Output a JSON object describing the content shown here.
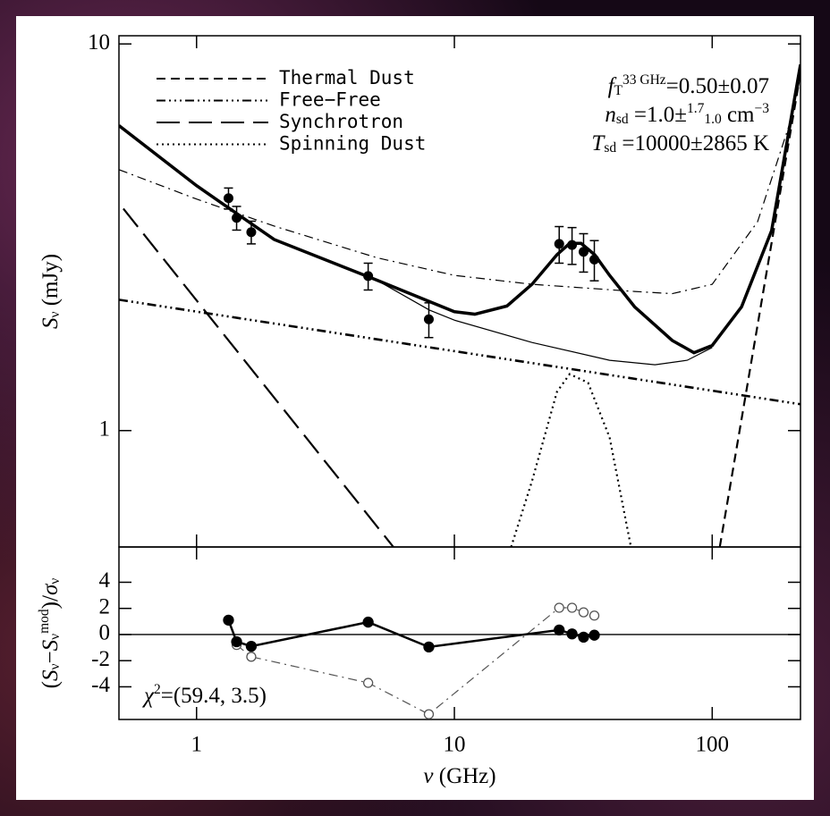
{
  "chart_data": [
    {
      "type": "line",
      "xscale": "log",
      "yscale": "log",
      "xlim": [
        0.5,
        220
      ],
      "ylim": [
        0.5,
        10.5
      ],
      "xticks": [
        1,
        10,
        100
      ],
      "yticks": [
        1,
        10
      ],
      "ylabel": [
        {
          "text": "S",
          "style": "italic"
        },
        {
          "text": "ν",
          "style": "sub"
        },
        {
          "text": " (mJy)",
          "style": "normal"
        }
      ],
      "legend": "upper left",
      "annotations": [
        [
          {
            "text": "f",
            "style": "italic"
          },
          {
            "text": "T",
            "style": "sub"
          },
          {
            "text": "33 GHz",
            "style": "sup"
          },
          {
            "text": "=0.50±0.07",
            "style": "normal"
          }
        ],
        [
          {
            "text": "n",
            "style": "italic"
          },
          {
            "text": "sd",
            "style": "sub"
          },
          {
            "text": " =1.0±",
            "style": "normal"
          },
          {
            "text": "1.7",
            "style": "sup"
          },
          {
            "text": "1.0",
            "style": "sub"
          },
          {
            "text": "  cm",
            "style": "normal"
          },
          {
            "text": "−3",
            "style": "sup"
          }
        ],
        [
          {
            "text": "T",
            "style": "italic"
          },
          {
            "text": "sd",
            "style": "sub"
          },
          {
            "text": " =10000±2865 K",
            "style": "normal"
          }
        ]
      ],
      "series": [
        {
          "dash": "solid",
          "width": 1.2,
          "x": [
            0.5,
            1,
            2,
            5,
            8,
            10,
            20,
            40,
            60,
            80,
            100
          ],
          "values": [
            6.15,
            4.3,
            3.12,
            2.45,
            2.05,
            1.93,
            1.69,
            1.52,
            1.48,
            1.52,
            1.64
          ]
        },
        {
          "dash": "dashdot",
          "width": 1.2,
          "x": [
            0.5,
            1,
            2,
            5,
            10,
            20,
            50,
            70,
            100,
            150,
            200,
            220
          ],
          "values": [
            4.73,
            3.97,
            3.38,
            2.8,
            2.52,
            2.39,
            2.29,
            2.26,
            2.39,
            3.47,
            6.24,
            8.2
          ]
        },
        {
          "dash": "solid",
          "width": 3.5,
          "x": [
            0.5,
            1,
            2,
            5,
            10,
            12,
            16,
            20,
            25,
            28,
            31,
            35,
            40,
            50,
            70,
            85,
            100,
            130,
            170,
            220
          ],
          "values": [
            6.15,
            4.3,
            3.12,
            2.45,
            2.03,
            2.0,
            2.1,
            2.39,
            2.85,
            3.05,
            3.05,
            2.85,
            2.52,
            2.09,
            1.71,
            1.59,
            1.66,
            2.09,
            3.29,
            8.85
          ]
        },
        {
          "name": "Thermal Dust",
          "dash": "dashed",
          "width": 2.2,
          "x": [
            107,
            220
          ],
          "values": [
            0.5,
            8.4
          ]
        },
        {
          "name": "Free−Free",
          "dash": "dashdotdotdot",
          "width": 2.6,
          "x": [
            0.5,
            220
          ],
          "values": [
            2.18,
            1.17
          ]
        },
        {
          "name": "Synchrotron",
          "dash": "longdash",
          "width": 2.2,
          "x": [
            0.52,
            5.8
          ],
          "values": [
            3.75,
            0.5
          ]
        },
        {
          "name": "Spinning Dust",
          "dash": "dotted",
          "width": 2.2,
          "x": [
            16.6,
            20,
            25,
            28,
            33,
            40,
            48.4
          ],
          "values": [
            0.5,
            0.74,
            1.26,
            1.4,
            1.33,
            0.96,
            0.5
          ]
        }
      ],
      "points": {
        "color": "#000000",
        "x": [
          1.33,
          1.43,
          1.63,
          4.63,
          7.96,
          25.5,
          28.6,
          31.7,
          34.9
        ],
        "values": [
          3.99,
          3.55,
          3.26,
          2.51,
          1.94,
          3.04,
          3.02,
          2.9,
          2.77
        ],
        "errors": [
          0.25,
          0.25,
          0.22,
          0.2,
          0.2,
          0.33,
          0.33,
          0.33,
          0.33
        ]
      }
    },
    {
      "type": "scatter",
      "xscale": "log",
      "xlim": [
        0.5,
        220
      ],
      "ylim": [
        -6.5,
        6.7
      ],
      "xticks": [
        1,
        10,
        100
      ],
      "yticks": [
        -4,
        -2,
        0,
        2,
        4
      ],
      "reference_line": 0,
      "xlabel": [
        {
          "text": "ν",
          "style": "italic"
        },
        {
          "text": " (GHz)",
          "style": "normal"
        }
      ],
      "ylabel": [
        {
          "text": "(",
          "style": "normal"
        },
        {
          "text": "S",
          "style": "italic"
        },
        {
          "text": "ν",
          "style": "sub"
        },
        {
          "text": "−",
          "style": "normal"
        },
        {
          "text": "S",
          "style": "italic"
        },
        {
          "text": "ν",
          "style": "sub"
        },
        {
          "text": "mod",
          "style": "sup"
        },
        {
          "text": ")/",
          "style": "normal"
        },
        {
          "text": "σ",
          "style": "italic"
        },
        {
          "text": "ν",
          "style": "sub"
        }
      ],
      "annotation": [
        {
          "text": "χ",
          "style": "italic"
        },
        {
          "text": "2",
          "style": "sup"
        },
        {
          "text": "=(59.4, 3.5)",
          "style": "normal"
        }
      ],
      "x": [
        1.33,
        1.43,
        1.63,
        4.63,
        7.96,
        25.5,
        28.6,
        31.7,
        34.9
      ],
      "series": [
        {
          "filled": false,
          "dash": "dashdot",
          "color": "#555555",
          "values": [
            null,
            -0.8,
            -1.7,
            -3.7,
            -6.1,
            2.05,
            2.05,
            1.7,
            1.45
          ]
        },
        {
          "filled": true,
          "dash": "solid",
          "color": "#000000",
          "values": [
            1.1,
            -0.55,
            -0.9,
            0.95,
            -0.95,
            0.35,
            0.05,
            -0.2,
            -0.05
          ]
        }
      ]
    }
  ]
}
